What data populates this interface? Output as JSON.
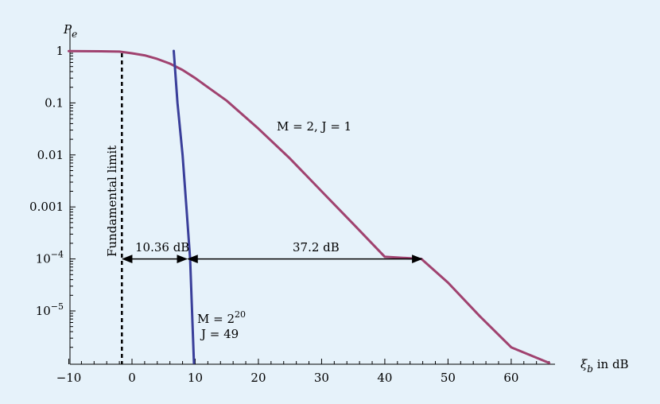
{
  "chart_data": {
    "type": "line",
    "ylabel": "P",
    "ylabel_sub": "e",
    "xlabel_symbol": "ξ",
    "xlabel_sub": "b",
    "xlabel_unit": " in dB",
    "x_ticks": [
      -10,
      0,
      10,
      20,
      30,
      40,
      50,
      60
    ],
    "xlim": [
      -10,
      66
    ],
    "y_scale": "log",
    "ylim": [
      1e-06,
      1.5
    ],
    "y_ticks": [
      {
        "value": 1,
        "label": "1"
      },
      {
        "value": 0.1,
        "label": "0.1"
      },
      {
        "value": 0.01,
        "label": "0.01"
      },
      {
        "value": 0.001,
        "label": "0.001"
      },
      {
        "value": 0.0001,
        "base": "10",
        "exp": "−4"
      },
      {
        "value": 1e-05,
        "base": "10",
        "exp": "−5"
      }
    ],
    "series": [
      {
        "label": "M = 2, J = 1",
        "color": "#a0426f",
        "x": [
          -10,
          -4,
          -2,
          0,
          2,
          4,
          6,
          8,
          10,
          12,
          15,
          20,
          25,
          30,
          35,
          40,
          45.8,
          50,
          55,
          60,
          66
        ],
        "y": [
          0.99,
          0.98,
          0.97,
          0.9,
          0.82,
          0.7,
          0.57,
          0.43,
          0.3,
          0.2,
          0.11,
          0.032,
          0.0085,
          0.002,
          0.00047,
          0.00011,
          0.0001,
          3.5e-05,
          8e-06,
          2e-06,
          1e-06
        ]
      },
      {
        "label_M": "M = 2",
        "label_M_exp": "20",
        "label_J": "J = 49",
        "color": "#3a3f9a",
        "x": [
          6.6,
          7.2,
          8.0,
          8.6,
          9.2,
          9.8
        ],
        "y": [
          1.0,
          0.1,
          0.01,
          0.001,
          0.0001,
          1e-06
        ]
      }
    ],
    "fundamental_limit": {
      "x": -1.6,
      "label": "Fundamental limit"
    },
    "annotations": [
      {
        "label": "10.36 dB",
        "x_from": -1.6,
        "x_to": 8.76,
        "y": 0.0001
      },
      {
        "label": "37.2 dB",
        "x_from": 8.76,
        "x_to": 45.96,
        "y": 0.0001
      }
    ]
  }
}
